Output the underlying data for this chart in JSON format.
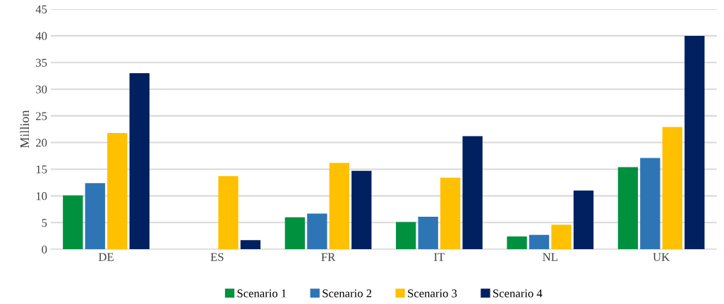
{
  "chart_data": {
    "type": "bar",
    "ylabel": "Million",
    "categories": [
      "DE",
      "ES",
      "FR",
      "IT",
      "NL",
      "UK"
    ],
    "series": [
      {
        "name": "Scenario 1",
        "color": "#00913f",
        "values": [
          10.1,
          0,
          6.0,
          5.1,
          2.4,
          15.4
        ]
      },
      {
        "name": "Scenario 2",
        "color": "#2e75b6",
        "values": [
          12.4,
          0,
          6.7,
          6.1,
          2.7,
          17.1
        ]
      },
      {
        "name": "Scenario 3",
        "color": "#ffc000",
        "values": [
          21.8,
          13.7,
          16.2,
          13.4,
          4.6,
          22.9
        ]
      },
      {
        "name": "Scenario 4",
        "color": "#002060",
        "values": [
          33.0,
          1.7,
          14.7,
          21.2,
          11.0,
          40.0
        ]
      }
    ],
    "ylim": [
      0,
      45
    ],
    "yticks": [
      0,
      5,
      10,
      15,
      20,
      25,
      30,
      35,
      40,
      45
    ],
    "grid": "y",
    "legend": "bottom"
  }
}
